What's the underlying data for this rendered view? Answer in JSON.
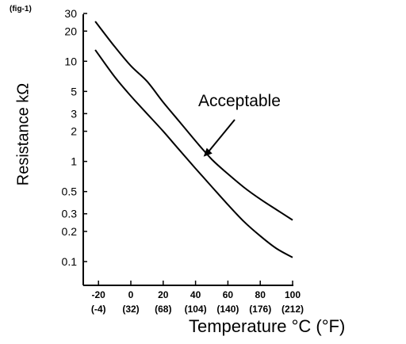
{
  "chart_data": {
    "type": "line",
    "figure_label": "(fig-1)",
    "title": "",
    "xlabel": "Temperature  °C (°F)",
    "ylabel": "Resistance kΩ",
    "xlim": [
      -26,
      100
    ],
    "ylim": [
      0.07,
      30
    ],
    "yscale": "log",
    "grid": false,
    "x_ticks": [
      {
        "value": -20,
        "label": "-20",
        "label_f": "(-4)"
      },
      {
        "value": 0,
        "label": "0",
        "label_f": "(32)"
      },
      {
        "value": 20,
        "label": "20",
        "label_f": "(68)"
      },
      {
        "value": 40,
        "label": "40",
        "label_f": "(104)"
      },
      {
        "value": 60,
        "label": "60",
        "label_f": "(140)"
      },
      {
        "value": 80,
        "label": "80",
        "label_f": "(176)"
      },
      {
        "value": 100,
        "label": "100",
        "label_f": "(212)"
      }
    ],
    "y_ticks": [
      {
        "value": 30,
        "label": "30"
      },
      {
        "value": 20,
        "label": "20"
      },
      {
        "value": 10,
        "label": "10"
      },
      {
        "value": 5,
        "label": "5"
      },
      {
        "value": 3,
        "label": "3"
      },
      {
        "value": 2,
        "label": "2"
      },
      {
        "value": 1,
        "label": "1"
      },
      {
        "value": 0.5,
        "label": "0.5"
      },
      {
        "value": 0.3,
        "label": "0.3"
      },
      {
        "value": 0.2,
        "label": "0.2"
      },
      {
        "value": 0.1,
        "label": "0.1"
      }
    ],
    "series": [
      {
        "role": "upper-limit",
        "x": [
          -22,
          -10,
          0,
          10,
          20,
          30,
          40,
          50,
          60,
          70,
          80,
          90,
          100
        ],
        "values": [
          25,
          14,
          9,
          6.3,
          3.9,
          2.5,
          1.6,
          1.05,
          0.75,
          0.55,
          0.42,
          0.33,
          0.26
        ]
      },
      {
        "role": "lower-limit",
        "x": [
          -22,
          -10,
          0,
          10,
          20,
          30,
          40,
          50,
          60,
          70,
          80,
          90,
          100
        ],
        "values": [
          13,
          7,
          4.5,
          3.0,
          2.0,
          1.3,
          0.85,
          0.56,
          0.37,
          0.25,
          0.18,
          0.135,
          0.11
        ]
      }
    ],
    "annotations": [
      {
        "text": "Acceptable",
        "arrow_to": {
          "x": 43,
          "y": 1.2
        }
      }
    ]
  }
}
